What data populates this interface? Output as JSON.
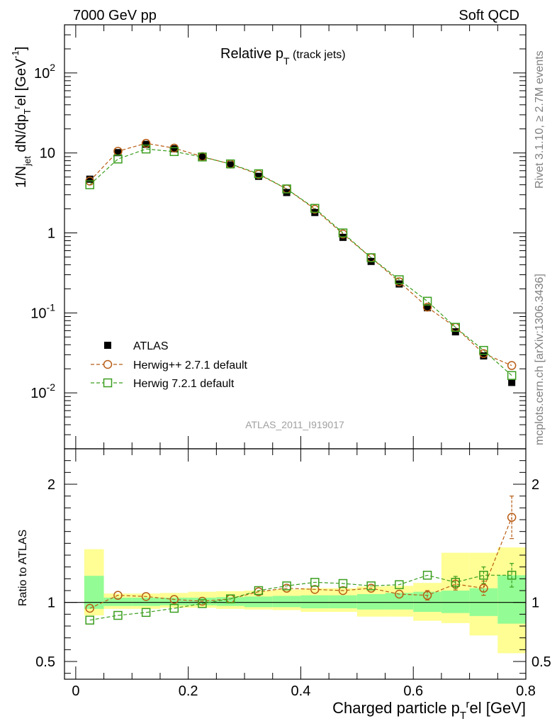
{
  "header": {
    "energy_label": "7000 GeV pp",
    "process_label": "Soft QCD",
    "side_rivet": "Rivet 3.1.10, ≥ 2.7M events",
    "side_mcplots": "mcplots.cern.ch [arXiv:1306.3436]",
    "analysis_id": "ATLAS_2011_I919017"
  },
  "chart_data": [
    {
      "type": "scatter",
      "panel": "main",
      "title": "Relative p_T (track jets)",
      "ylabel": "1/N_jet dN/dp_T^rel [GeV^-1]",
      "yscale": "log",
      "ylim": [
        0.002,
        400
      ],
      "xlim": [
        -0.02,
        0.8
      ],
      "y_ticks": [
        {
          "value": 0.01,
          "base": "10",
          "exp": "-2"
        },
        {
          "value": 0.1,
          "base": "10",
          "exp": "-1"
        },
        {
          "value": 1,
          "base": "1",
          "exp": ""
        },
        {
          "value": 10,
          "base": "10",
          "exp": ""
        },
        {
          "value": 100,
          "base": "10",
          "exp": "2"
        }
      ],
      "x": [
        0.025,
        0.075,
        0.125,
        0.175,
        0.225,
        0.275,
        0.325,
        0.375,
        0.425,
        0.475,
        0.525,
        0.575,
        0.625,
        0.675,
        0.725,
        0.775
      ],
      "series": [
        {
          "name": "ATLAS",
          "marker": "filled-square",
          "color": "#000000",
          "values": [
            4.7,
            10.1,
            12.8,
            11.3,
            9.0,
            7.1,
            5.1,
            3.2,
            1.8,
            0.88,
            0.44,
            0.23,
            0.116,
            0.058,
            0.029,
            0.0135
          ]
        },
        {
          "name": "Herwig++ 2.7.1 default",
          "marker": "open-circle",
          "color": "#b85c14",
          "values": [
            4.45,
            10.5,
            13.2,
            11.5,
            9.0,
            7.25,
            5.4,
            3.55,
            1.98,
            0.97,
            0.49,
            0.245,
            0.118,
            0.066,
            0.031,
            0.022
          ]
        },
        {
          "name": "Herwig 7.2.1 default",
          "marker": "open-square",
          "color": "#3a9e1e",
          "values": [
            4.0,
            8.4,
            11.2,
            10.4,
            8.9,
            7.3,
            5.5,
            3.55,
            2.03,
            1.0,
            0.49,
            0.26,
            0.14,
            0.066,
            0.034,
            0.0165
          ]
        }
      ],
      "legend_position": "bottom-left"
    },
    {
      "type": "scatter",
      "panel": "ratio",
      "xlabel": "Charged particle p_T^rel [GeV]",
      "ylabel": "Ratio to ATLAS",
      "ylim": [
        0.35,
        2.3
      ],
      "xlim": [
        -0.02,
        0.8
      ],
      "x_ticks": [
        "0",
        "0.2",
        "0.4",
        "0.6",
        "0.8"
      ],
      "y_ticks": [
        "0.5",
        "1",
        "2"
      ],
      "bin_edges": [
        0.0,
        0.05,
        0.1,
        0.15,
        0.2,
        0.25,
        0.3,
        0.35,
        0.4,
        0.45,
        0.5,
        0.55,
        0.6,
        0.65,
        0.7,
        0.75,
        0.8
      ],
      "band_inner": [
        [
          0.945,
          1.225
        ],
        [
          0.97,
          1.04
        ],
        [
          0.97,
          1.04
        ],
        [
          0.975,
          1.04
        ],
        [
          0.975,
          1.04
        ],
        [
          0.97,
          1.045
        ],
        [
          0.96,
          1.05
        ],
        [
          0.96,
          1.055
        ],
        [
          0.95,
          1.06
        ],
        [
          0.95,
          1.06
        ],
        [
          0.94,
          1.07
        ],
        [
          0.94,
          1.08
        ],
        [
          0.92,
          1.09
        ],
        [
          0.91,
          1.1
        ],
        [
          0.885,
          1.12
        ],
        [
          0.82,
          1.23
        ]
      ],
      "band_outer": [
        [
          0.89,
          1.45
        ],
        [
          0.945,
          1.075
        ],
        [
          0.945,
          1.075
        ],
        [
          0.955,
          1.08
        ],
        [
          0.955,
          1.09
        ],
        [
          0.945,
          1.095
        ],
        [
          0.94,
          1.1
        ],
        [
          0.935,
          1.11
        ],
        [
          0.92,
          1.12
        ],
        [
          0.92,
          1.12
        ],
        [
          0.88,
          1.135
        ],
        [
          0.88,
          1.14
        ],
        [
          0.845,
          1.165
        ],
        [
          0.825,
          1.42
        ],
        [
          0.72,
          1.42
        ],
        [
          0.57,
          1.465
        ]
      ],
      "series": [
        {
          "name": "Herwig++ 2.7.1 default",
          "color": "#b85c14",
          "values": [
            0.95,
            1.06,
            1.05,
            1.025,
            1.01,
            1.03,
            1.09,
            1.12,
            1.11,
            1.1,
            1.12,
            1.07,
            1.06,
            1.155,
            1.12,
            1.72
          ],
          "errors": [
            0.01,
            0.01,
            0.01,
            0.01,
            0.01,
            0.01,
            0.01,
            0.015,
            0.015,
            0.015,
            0.02,
            0.03,
            0.04,
            0.05,
            0.06,
            0.18
          ]
        },
        {
          "name": "Herwig 7.2.1 default",
          "color": "#3a9e1e",
          "values": [
            0.85,
            0.89,
            0.915,
            0.95,
            0.99,
            1.03,
            1.1,
            1.14,
            1.17,
            1.16,
            1.14,
            1.15,
            1.23,
            1.17,
            1.23,
            1.23
          ],
          "errors": [
            0.01,
            0.01,
            0.01,
            0.01,
            0.01,
            0.01,
            0.01,
            0.015,
            0.015,
            0.015,
            0.02,
            0.025,
            0.035,
            0.05,
            0.07,
            0.1
          ]
        }
      ]
    }
  ]
}
